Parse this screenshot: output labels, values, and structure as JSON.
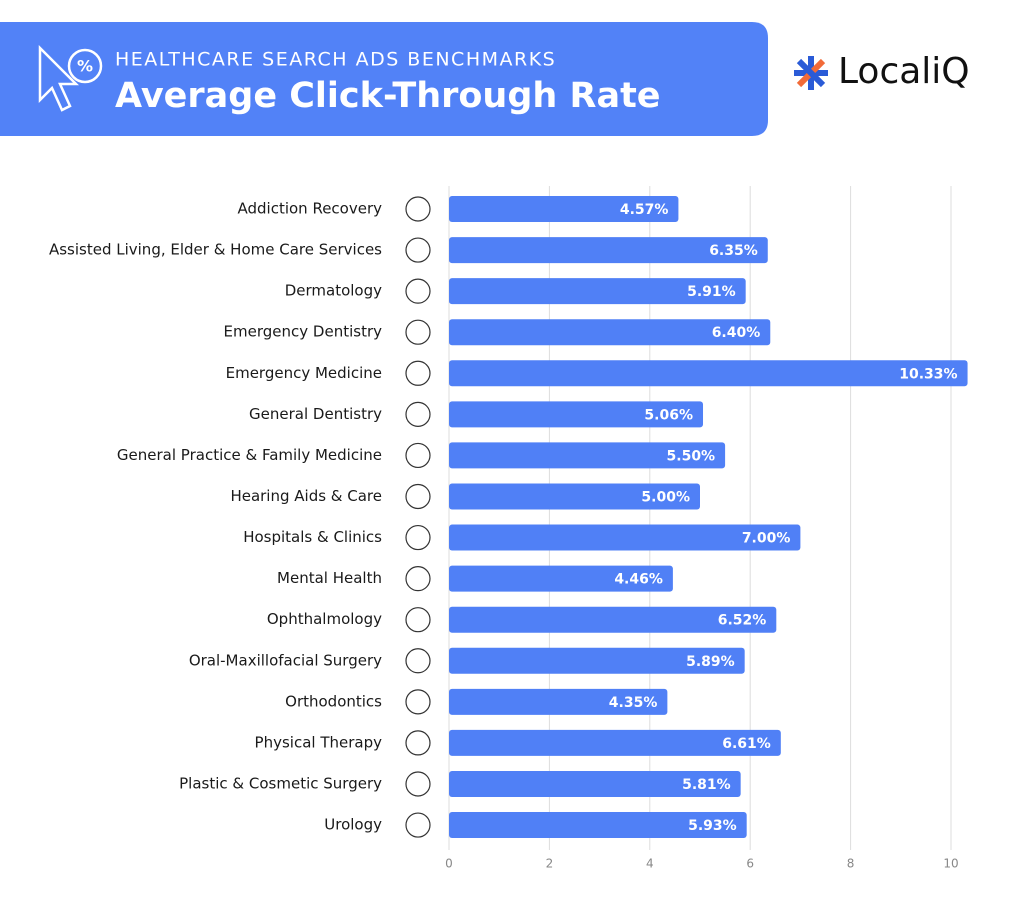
{
  "brand": "LocaliQ",
  "chart_data": {
    "type": "bar",
    "orientation": "horizontal",
    "subtitle": "HEALTHCARE SEARCH ADS BENCHMARKS",
    "title": "Average Click-Through Rate",
    "categories": [
      "Addiction Recovery",
      "Assisted Living, Elder & Home Care Services",
      "Dermatology",
      "Emergency Dentistry",
      "Emergency Medicine",
      "General Dentistry",
      "General Practice & Family Medicine",
      "Hearing Aids & Care",
      "Hospitals & Clinics",
      "Mental Health",
      "Ophthalmology",
      "Oral-Maxillofacial Surgery",
      "Orthodontics",
      "Physical Therapy",
      "Plastic & Cosmetic Surgery",
      "Urology"
    ],
    "values": [
      4.57,
      6.35,
      5.91,
      6.4,
      10.33,
      5.06,
      5.5,
      5.0,
      7.0,
      4.46,
      6.52,
      5.89,
      4.35,
      6.61,
      5.81,
      5.93
    ],
    "value_labels": [
      "4.57%",
      "6.35%",
      "5.91%",
      "6.40%",
      "10.33%",
      "5.06%",
      "5.50%",
      "5.00%",
      "7.00%",
      "4.46%",
      "6.52%",
      "5.89%",
      "4.35%",
      "6.61%",
      "5.81%",
      "5.93%"
    ],
    "color": "#5080f6",
    "xlim": [
      0,
      10
    ],
    "xticks": [
      0,
      2,
      4,
      6,
      8,
      10
    ],
    "grid": true
  }
}
